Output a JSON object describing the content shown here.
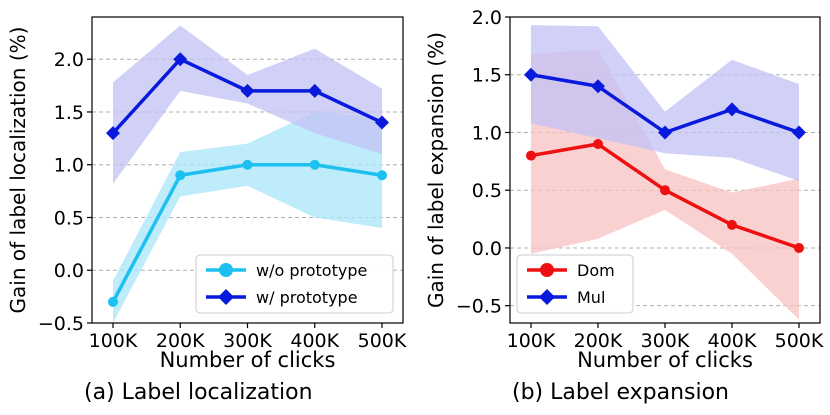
{
  "captions": {
    "a": "(a) Label localization",
    "b": "(b) Label expansion"
  },
  "chart_data": [
    {
      "type": "line",
      "x": [
        "100K",
        "200K",
        "300K",
        "400K",
        "500K"
      ],
      "xlabel": "Number of clicks",
      "ylabel": "Gain of label localization (%)",
      "ylim": [
        -0.5,
        2.4
      ],
      "yticks": [
        "−0.5",
        "0.0",
        "0.5",
        "1.0",
        "1.5",
        "2.0"
      ],
      "ytick_values": [
        -0.5,
        0.0,
        0.5,
        1.0,
        1.5,
        2.0
      ],
      "grid": "horizontal dashed",
      "legend_position": "lower-right",
      "series": [
        {
          "name": "w/o prototype",
          "values": [
            -0.3,
            0.9,
            1.0,
            1.0,
            0.9
          ],
          "lower": [
            -0.5,
            0.7,
            0.8,
            0.5,
            0.4
          ],
          "upper": [
            -0.1,
            1.12,
            1.2,
            1.5,
            1.45
          ],
          "marker": "circle",
          "color": "#1ec0f2",
          "band_color": "#a8e6f8"
        },
        {
          "name": "w/ prototype",
          "values": [
            1.3,
            2.0,
            1.7,
            1.7,
            1.4
          ],
          "lower": [
            0.82,
            1.7,
            1.58,
            1.3,
            1.1
          ],
          "upper": [
            1.78,
            2.32,
            1.85,
            2.1,
            1.72
          ],
          "marker": "diamond",
          "color": "#0a1adc",
          "band_color": "#c2c2f6"
        }
      ]
    },
    {
      "type": "line",
      "x": [
        "100K",
        "200K",
        "300K",
        "400K",
        "500K"
      ],
      "xlabel": "Number of clicks",
      "ylabel": "Gain of label expansion (%)",
      "ylim": [
        -0.65,
        2.0
      ],
      "yticks": [
        "−0.5",
        "0.0",
        "0.5",
        "1.0",
        "1.5",
        "2.0"
      ],
      "ytick_values": [
        -0.5,
        0.0,
        0.5,
        1.0,
        1.5,
        2.0
      ],
      "grid": "horizontal dashed",
      "legend_position": "lower-left",
      "series": [
        {
          "name": "Dom",
          "values": [
            0.8,
            0.9,
            0.5,
            0.2,
            0.0
          ],
          "lower": [
            -0.05,
            0.08,
            0.33,
            -0.05,
            -0.62
          ],
          "upper": [
            1.68,
            1.72,
            0.68,
            0.48,
            0.6
          ],
          "marker": "circle",
          "color": "#ee1010",
          "band_color": "#f8c2c2"
        },
        {
          "name": "Mul",
          "values": [
            1.5,
            1.4,
            1.0,
            1.2,
            1.0
          ],
          "lower": [
            1.08,
            0.95,
            0.82,
            0.78,
            0.58
          ],
          "upper": [
            1.93,
            1.92,
            1.18,
            1.63,
            1.42
          ],
          "marker": "diamond",
          "color": "#0a1adc",
          "band_color": "#c2c2f6"
        }
      ]
    }
  ]
}
